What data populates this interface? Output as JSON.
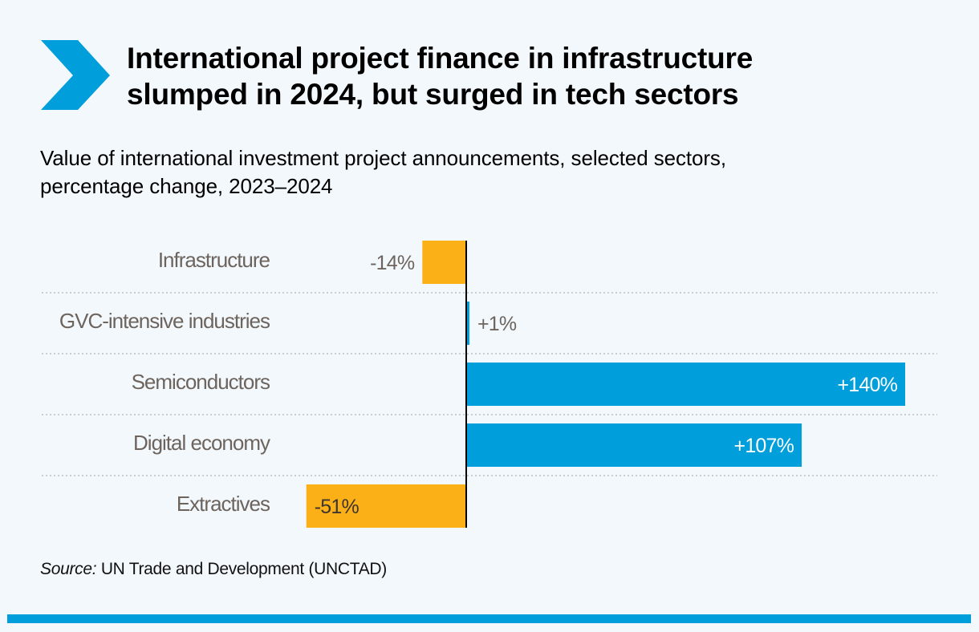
{
  "header": {
    "title_line1": "International project finance in infrastructure",
    "title_line2": "slumped in 2024, but surged in tech sectors",
    "subtitle_line1": "Value of international investment project announcements, selected sectors,",
    "subtitle_line2": "percentage change, 2023–2024",
    "icon": "chevron-right-icon"
  },
  "colors": {
    "positive": "#009edb",
    "negative": "#fbb017",
    "accent": "#009edb",
    "background": "#f3f8fc",
    "category_label": "#6d645e",
    "axis": "#000000"
  },
  "chart_data": {
    "type": "bar",
    "orientation": "horizontal",
    "title": "International project finance in infrastructure slumped in 2024, but surged in tech sectors",
    "subtitle": "Value of international investment project announcements, selected sectors, percentage change, 2023–2024",
    "xlabel": "",
    "ylabel": "",
    "unit": "%",
    "xlim": [
      -51,
      140
    ],
    "grid": false,
    "legend": "none",
    "categories": [
      "Infrastructure",
      "GVC-intensive industries",
      "Semiconductors",
      "Digital economy",
      "Extractives"
    ],
    "values": [
      -14,
      1,
      140,
      107,
      -51
    ],
    "value_labels": [
      "-14%",
      "+1%",
      "+140%",
      "+107%",
      "-51%"
    ]
  },
  "footer": {
    "source_prefix": "Source:",
    "source_text": " UN Trade and Development (UNCTAD)"
  }
}
